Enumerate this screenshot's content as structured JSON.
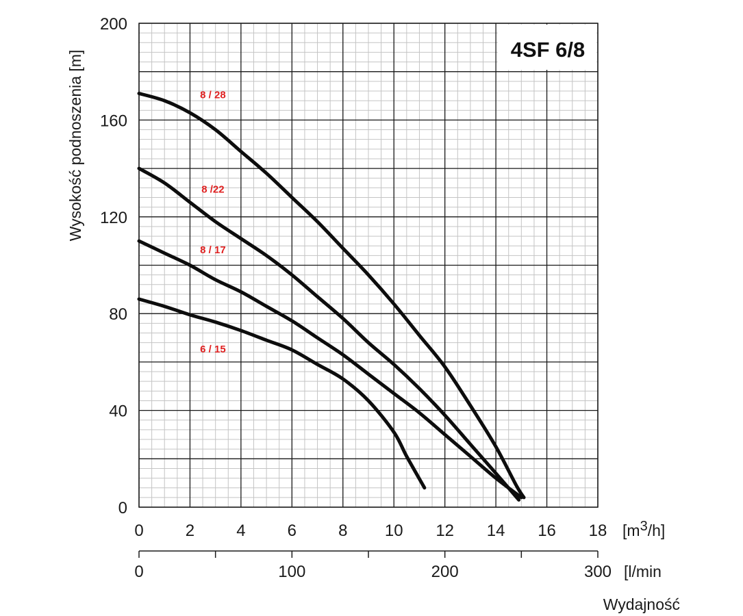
{
  "chart_data": {
    "type": "line",
    "model": "4SF 6/8",
    "ylabel": "Wysokość podnoszenia [m]",
    "xlabel": "Wydajność",
    "x_unit_primary": "[m3/h]",
    "x_unit_secondary": "[l/min",
    "ylim": [
      0,
      200
    ],
    "xlim": [
      0,
      18
    ],
    "y_ticks": [
      "0",
      "40",
      "80",
      "120",
      "160",
      "200"
    ],
    "x_ticks_primary": [
      "0",
      "2",
      "4",
      "6",
      "8",
      "10",
      "12",
      "14",
      "16",
      "18"
    ],
    "x_ticks_secondary": [
      "0",
      "100",
      "200",
      "300"
    ],
    "grid": true,
    "series": [
      {
        "name": "8 / 28",
        "x": [
          0,
          1,
          2,
          3,
          4,
          5,
          6,
          7,
          8,
          9,
          10,
          11,
          12,
          13,
          14,
          14.8,
          15.1
        ],
        "y": [
          171,
          168,
          163,
          156,
          147,
          138,
          128,
          118,
          107,
          96,
          84,
          71,
          58,
          42,
          25,
          9,
          4
        ]
      },
      {
        "name": "8 /22",
        "x": [
          0,
          1,
          2,
          3,
          4,
          5,
          6,
          7,
          8,
          9,
          10,
          11,
          12,
          13,
          14,
          14.9
        ],
        "y": [
          140,
          134,
          126,
          118,
          111,
          104,
          96,
          87,
          78,
          68,
          59,
          49,
          38,
          26,
          14,
          3
        ]
      },
      {
        "name": "8 / 17",
        "x": [
          0,
          1,
          2,
          3,
          4,
          5,
          6,
          7,
          8,
          9,
          10,
          11,
          12,
          13,
          14,
          15
        ],
        "y": [
          110,
          105,
          100,
          94,
          89,
          83,
          77,
          70,
          63,
          55,
          47,
          39,
          30,
          21,
          12,
          4
        ]
      },
      {
        "name": "6 / 15",
        "x": [
          0,
          1,
          2,
          3,
          4,
          5,
          6,
          7,
          8,
          9,
          10,
          10.5,
          11.2
        ],
        "y": [
          86,
          83,
          79.5,
          76.5,
          73,
          69,
          65,
          59,
          53,
          44,
          31,
          21,
          8
        ]
      }
    ]
  }
}
